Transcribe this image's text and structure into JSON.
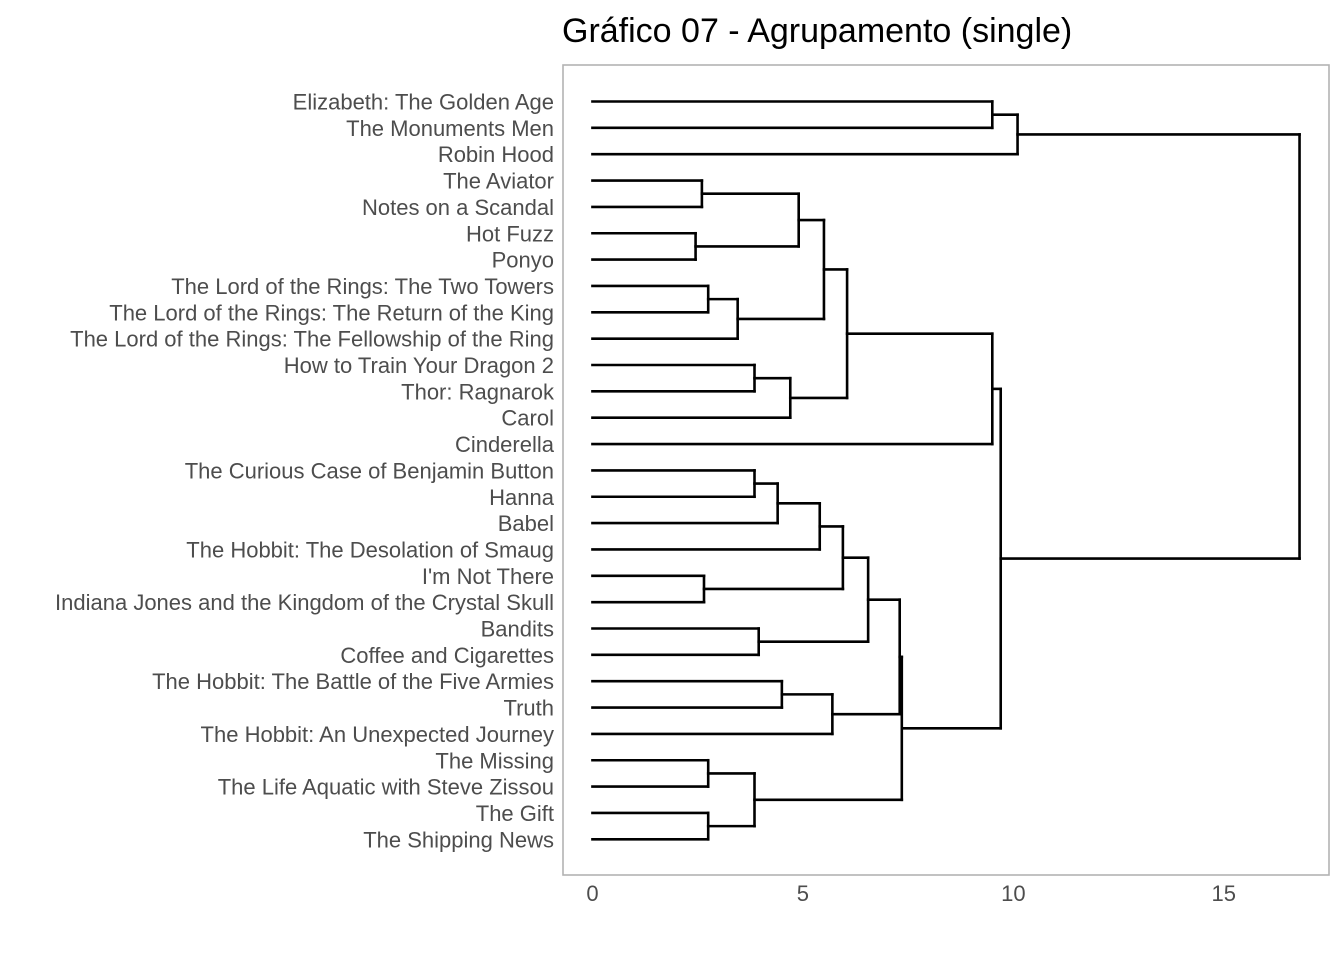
{
  "chart_data": {
    "type": "dendrogram",
    "title": "Gráfico 07 - Agrupamento (single)",
    "xlabel": "",
    "ylabel": "",
    "xlim": [
      -0.7,
      17.5
    ],
    "x_ticks": [
      0,
      5,
      10,
      15
    ],
    "x_tick_labels": [
      "0",
      "5",
      "10",
      "15"
    ],
    "grid": false,
    "orientation": "horizontal",
    "line_color": "#000000",
    "leaves": [
      "Elizabeth: The Golden Age",
      "The Monuments Men",
      "Robin Hood",
      "The Aviator",
      "Notes on a Scandal",
      "Hot Fuzz",
      "Ponyo",
      "The Lord of the Rings: The Two Towers",
      "The Lord of the Rings: The Return of the King",
      "The Lord of the Rings: The Fellowship of the Ring",
      "How to Train Your Dragon 2",
      "Thor: Ragnarok",
      "Carol",
      "Cinderella",
      "The Curious Case of Benjamin Button",
      "Hanna",
      "Babel",
      "The Hobbit: The Desolation of Smaug",
      "I'm Not There",
      "Indiana Jones and the Kingdom of the Crystal Skull",
      "Bandits",
      "Coffee and Cigarettes",
      "The Hobbit: The Battle of the Five Armies",
      "Truth",
      "The Hobbit: An Unexpected Journey",
      "The Missing",
      "The Life Aquatic with Steve Zissou",
      "The Gift",
      "The Shipping News"
    ],
    "merges": [
      {
        "id": "m1",
        "a": "L0",
        "b": "L1",
        "height": 9.5
      },
      {
        "id": "m2",
        "a": "m1",
        "b": "L2",
        "height": 10.1
      },
      {
        "id": "m3",
        "a": "L3",
        "b": "L4",
        "height": 2.6
      },
      {
        "id": "m4",
        "a": "L5",
        "b": "L6",
        "height": 2.45
      },
      {
        "id": "m5",
        "a": "m3",
        "b": "m4",
        "height": 4.9
      },
      {
        "id": "m6",
        "a": "L7",
        "b": "L8",
        "height": 2.75
      },
      {
        "id": "m7",
        "a": "m6",
        "b": "L9",
        "height": 3.45
      },
      {
        "id": "m8",
        "a": "m5",
        "b": "m7",
        "height": 5.5
      },
      {
        "id": "m9",
        "a": "L10",
        "b": "L11",
        "height": 3.85
      },
      {
        "id": "m10",
        "a": "m9",
        "b": "L12",
        "height": 4.7
      },
      {
        "id": "m11",
        "a": "m8",
        "b": "m10",
        "height": 6.05
      },
      {
        "id": "m12",
        "a": "m11",
        "b": "L13",
        "height": 9.5
      },
      {
        "id": "m13",
        "a": "L14",
        "b": "L15",
        "height": 3.85
      },
      {
        "id": "m14",
        "a": "m13",
        "b": "L16",
        "height": 4.4
      },
      {
        "id": "m15",
        "a": "m14",
        "b": "L17",
        "height": 5.4
      },
      {
        "id": "m16",
        "a": "L18",
        "b": "L19",
        "height": 2.65
      },
      {
        "id": "m17",
        "a": "m15",
        "b": "m16",
        "height": 5.95
      },
      {
        "id": "m18",
        "a": "L20",
        "b": "L21",
        "height": 3.95
      },
      {
        "id": "m19",
        "a": "m17",
        "b": "m18",
        "height": 6.55
      },
      {
        "id": "m20",
        "a": "L22",
        "b": "L23",
        "height": 4.5
      },
      {
        "id": "m21",
        "a": "m20",
        "b": "L24",
        "height": 5.7
      },
      {
        "id": "m22",
        "a": "m19",
        "b": "m21",
        "height": 7.3
      },
      {
        "id": "m23",
        "a": "L25",
        "b": "L26",
        "height": 2.75
      },
      {
        "id": "m24",
        "a": "L27",
        "b": "L28",
        "height": 2.75
      },
      {
        "id": "m25",
        "a": "m23",
        "b": "m24",
        "height": 3.85
      },
      {
        "id": "m26",
        "a": "m22",
        "b": "m25",
        "height": 7.35
      },
      {
        "id": "m27",
        "a": "m12",
        "b": "m26",
        "height": 9.7
      },
      {
        "id": "m28",
        "a": "m2",
        "b": "m27",
        "height": 16.8
      }
    ]
  }
}
